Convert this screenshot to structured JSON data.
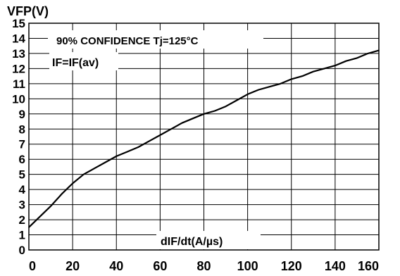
{
  "chart_data": {
    "type": "line",
    "title": "",
    "ylabel": "VFP(V)",
    "xlabel": "dIF/dt(A/µs)",
    "annotations": [
      "90% CONFIDENCE Tj=125°C",
      "IF=IF(av)"
    ],
    "xlim": [
      0,
      160
    ],
    "ylim": [
      0,
      15
    ],
    "x_ticks": [
      0,
      20,
      40,
      60,
      80,
      100,
      120,
      140,
      160
    ],
    "y_ticks": [
      0,
      1,
      2,
      3,
      4,
      5,
      6,
      7,
      8,
      9,
      10,
      11,
      12,
      13,
      14,
      15
    ],
    "grid": true,
    "series": [
      {
        "x": [
          0,
          5,
          10,
          15,
          20,
          25,
          30,
          35,
          40,
          45,
          50,
          55,
          60,
          65,
          70,
          75,
          80,
          85,
          90,
          95,
          100,
          105,
          110,
          115,
          120,
          125,
          130,
          135,
          140,
          145,
          150,
          155,
          160
        ],
        "y": [
          1.5,
          2.2,
          2.9,
          3.7,
          4.4,
          5.0,
          5.4,
          5.8,
          6.2,
          6.5,
          6.8,
          7.2,
          7.6,
          8.0,
          8.4,
          8.7,
          9.0,
          9.2,
          9.5,
          9.9,
          10.3,
          10.6,
          10.8,
          11.0,
          11.3,
          11.5,
          11.8,
          12.0,
          12.2,
          12.5,
          12.7,
          13.0,
          13.2
        ],
        "color": "#000000"
      }
    ]
  }
}
